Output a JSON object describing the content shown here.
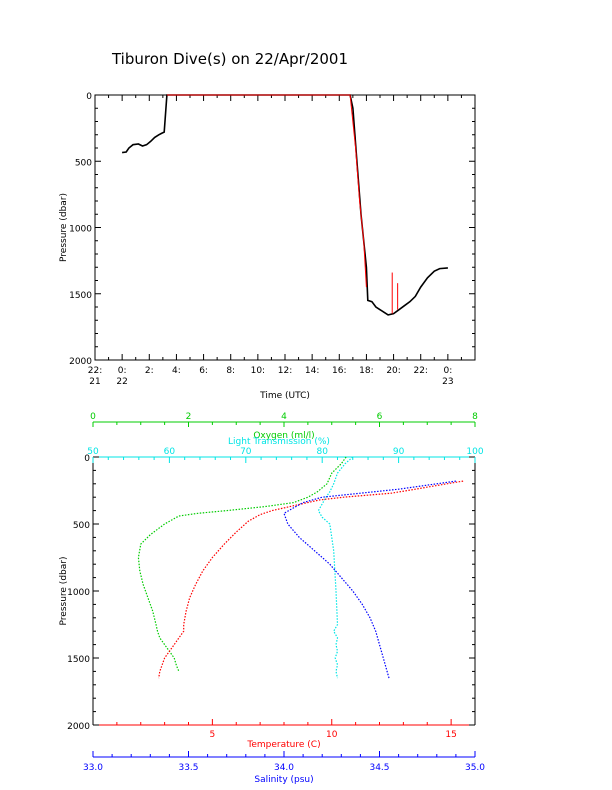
{
  "title": "Tiburon Dive(s) on 22/Apr/2001",
  "chart_data": [
    {
      "type": "line",
      "title": "Tiburon Dive(s) on 22/Apr/2001",
      "xlabel": "Time (UTC)",
      "ylabel": "Pressure (dbar)",
      "xlim": [
        -2,
        26
      ],
      "ylim": [
        2000,
        0
      ],
      "y_ticks": [
        0,
        500,
        1000,
        1500,
        2000
      ],
      "x_ticks": [
        {
          "value": -2,
          "label": "22:",
          "sub": "21"
        },
        {
          "value": 0,
          "label": "0:",
          "sub": "22"
        },
        {
          "value": 2,
          "label": "2:",
          "sub": ""
        },
        {
          "value": 4,
          "label": "4:",
          "sub": ""
        },
        {
          "value": 6,
          "label": "6:",
          "sub": ""
        },
        {
          "value": 8,
          "label": "8:",
          "sub": ""
        },
        {
          "value": 10,
          "label": "10:",
          "sub": ""
        },
        {
          "value": 12,
          "label": "12:",
          "sub": ""
        },
        {
          "value": 14,
          "label": "14:",
          "sub": ""
        },
        {
          "value": 16,
          "label": "16:",
          "sub": ""
        },
        {
          "value": 18,
          "label": "18:",
          "sub": ""
        },
        {
          "value": 20,
          "label": "20:",
          "sub": ""
        },
        {
          "value": 22,
          "label": "22:",
          "sub": ""
        },
        {
          "value": 24,
          "label": "0:",
          "sub": "23"
        }
      ],
      "series": [
        {
          "color": "#000000",
          "points": [
            [
              0.0,
              435
            ],
            [
              0.3,
              430
            ],
            [
              0.5,
              400
            ],
            [
              0.8,
              375
            ],
            [
              1.2,
              370
            ],
            [
              1.5,
              385
            ],
            [
              1.8,
              375
            ],
            [
              2.1,
              350
            ],
            [
              2.4,
              320
            ],
            [
              2.7,
              300
            ],
            [
              2.9,
              290
            ],
            [
              3.1,
              280
            ],
            [
              3.3,
              0
            ],
            [
              5.0,
              0
            ],
            [
              10.0,
              0
            ],
            [
              15.0,
              0
            ],
            [
              16.8,
              0
            ],
            [
              17.0,
              100
            ],
            [
              17.3,
              500
            ],
            [
              17.6,
              900
            ],
            [
              18.0,
              1300
            ],
            [
              18.1,
              1550
            ],
            [
              18.4,
              1560
            ],
            [
              18.7,
              1600
            ],
            [
              19.0,
              1620
            ],
            [
              19.3,
              1640
            ],
            [
              19.6,
              1660
            ],
            [
              20.0,
              1650
            ],
            [
              20.4,
              1620
            ],
            [
              20.8,
              1590
            ],
            [
              21.2,
              1560
            ],
            [
              21.6,
              1520
            ],
            [
              22.0,
              1450
            ],
            [
              22.5,
              1380
            ],
            [
              23.0,
              1330
            ],
            [
              23.4,
              1310
            ],
            [
              24.0,
              1305
            ]
          ]
        },
        {
          "color": "#ff0000",
          "points": [
            [
              3.3,
              0
            ],
            [
              10.0,
              0
            ],
            [
              16.8,
              0
            ],
            [
              17.2,
              400
            ],
            [
              17.5,
              800
            ],
            [
              17.8,
              1100
            ],
            [
              18.0,
              1450
            ]
          ]
        }
      ]
    },
    {
      "type": "scatter",
      "ylabel": "Pressure (dbar)",
      "ylim": [
        2000,
        0
      ],
      "y_ticks": [
        0,
        500,
        1000,
        1500,
        2000
      ],
      "axes": {
        "oxygen": {
          "label": "Oxygen (ml/l)",
          "color": "#00cc00",
          "range": [
            0,
            8
          ],
          "ticks": [
            0,
            2,
            4,
            6,
            8
          ]
        },
        "light": {
          "label": "Light Transmission (%)",
          "color": "#00e5e5",
          "range": [
            50,
            100
          ],
          "ticks": [
            50,
            60,
            70,
            80,
            90,
            100
          ]
        },
        "temperature": {
          "label": "Temperature (C)",
          "color": "#ff0000",
          "range": [
            0,
            16
          ],
          "ticks": [
            5,
            10,
            15
          ]
        },
        "salinity": {
          "label": "Salinity (psu)",
          "color": "#0000ff",
          "range": [
            33.0,
            35.0
          ],
          "ticks": [
            33.0,
            33.5,
            34.0,
            34.5,
            35.0
          ],
          "tick_labels": [
            "33.0",
            "33.5",
            "34.0",
            "34.5",
            "35.0"
          ]
        }
      },
      "series": [
        {
          "name": "Oxygen (ml/l)",
          "axis": "oxygen",
          "color": "#00cc00",
          "points": [
            [
              5.3,
              0
            ],
            [
              5.2,
              50
            ],
            [
              5.0,
              120
            ],
            [
              4.9,
              200
            ],
            [
              4.7,
              260
            ],
            [
              4.5,
              300
            ],
            [
              4.2,
              340
            ],
            [
              3.6,
              370
            ],
            [
              2.8,
              400
            ],
            [
              2.2,
              420
            ],
            [
              1.8,
              440
            ],
            [
              1.5,
              500
            ],
            [
              1.2,
              580
            ],
            [
              1.0,
              650
            ],
            [
              0.95,
              750
            ],
            [
              0.98,
              850
            ],
            [
              1.05,
              950
            ],
            [
              1.15,
              1050
            ],
            [
              1.25,
              1150
            ],
            [
              1.32,
              1250
            ],
            [
              1.35,
              1300
            ],
            [
              1.4,
              1350
            ],
            [
              1.5,
              1400
            ],
            [
              1.6,
              1450
            ],
            [
              1.7,
              1500
            ],
            [
              1.75,
              1560
            ],
            [
              1.8,
              1600
            ]
          ]
        },
        {
          "name": "Light Transmission (%)",
          "axis": "light",
          "color": "#00e5e5",
          "points": [
            [
              84,
              0
            ],
            [
              83,
              50
            ],
            [
              82,
              120
            ],
            [
              81.5,
              200
            ],
            [
              81,
              260
            ],
            [
              80.5,
              300
            ],
            [
              80,
              350
            ],
            [
              79.5,
              400
            ],
            [
              80,
              450
            ],
            [
              81,
              500
            ],
            [
              81.5,
              700
            ],
            [
              81.8,
              1000
            ],
            [
              82,
              1250
            ],
            [
              81.5,
              1300
            ],
            [
              82,
              1350
            ],
            [
              81.8,
              1400
            ],
            [
              82,
              1450
            ],
            [
              81.7,
              1500
            ],
            [
              82,
              1550
            ],
            [
              81.8,
              1600
            ],
            [
              82,
              1650
            ]
          ]
        },
        {
          "name": "Temperature (C)",
          "axis": "temperature",
          "color": "#ff0000",
          "points": [
            [
              15.5,
              180
            ],
            [
              14.5,
              210
            ],
            [
              13.5,
              240
            ],
            [
              12.5,
              270
            ],
            [
              11.5,
              285
            ],
            [
              10.5,
              300
            ],
            [
              9.5,
              320
            ],
            [
              8.5,
              360
            ],
            [
              8.0,
              380
            ],
            [
              7.5,
              400
            ],
            [
              7.0,
              430
            ],
            [
              6.5,
              480
            ],
            [
              6.0,
              560
            ],
            [
              5.5,
              650
            ],
            [
              5.0,
              750
            ],
            [
              4.6,
              850
            ],
            [
              4.3,
              950
            ],
            [
              4.05,
              1050
            ],
            [
              3.9,
              1150
            ],
            [
              3.8,
              1250
            ],
            [
              3.8,
              1300
            ],
            [
              3.6,
              1350
            ],
            [
              3.4,
              1400
            ],
            [
              3.2,
              1450
            ],
            [
              3.0,
              1500
            ],
            [
              2.9,
              1550
            ],
            [
              2.8,
              1600
            ],
            [
              2.75,
              1650
            ]
          ]
        },
        {
          "name": "Salinity (psu)",
          "axis": "salinity",
          "color": "#0000ff",
          "points": [
            [
              34.9,
              180
            ],
            [
              34.8,
              200
            ],
            [
              34.6,
              240
            ],
            [
              34.4,
              270
            ],
            [
              34.2,
              300
            ],
            [
              34.1,
              340
            ],
            [
              34.05,
              380
            ],
            [
              34.0,
              420
            ],
            [
              34.02,
              500
            ],
            [
              34.08,
              600
            ],
            [
              34.16,
              700
            ],
            [
              34.24,
              800
            ],
            [
              34.3,
              900
            ],
            [
              34.36,
              1000
            ],
            [
              34.41,
              1100
            ],
            [
              34.45,
              1200
            ],
            [
              34.48,
              1300
            ],
            [
              34.49,
              1350
            ],
            [
              34.5,
              1400
            ],
            [
              34.51,
              1450
            ],
            [
              34.52,
              1500
            ],
            [
              34.53,
              1550
            ],
            [
              34.54,
              1600
            ],
            [
              34.55,
              1650
            ]
          ]
        }
      ]
    }
  ]
}
